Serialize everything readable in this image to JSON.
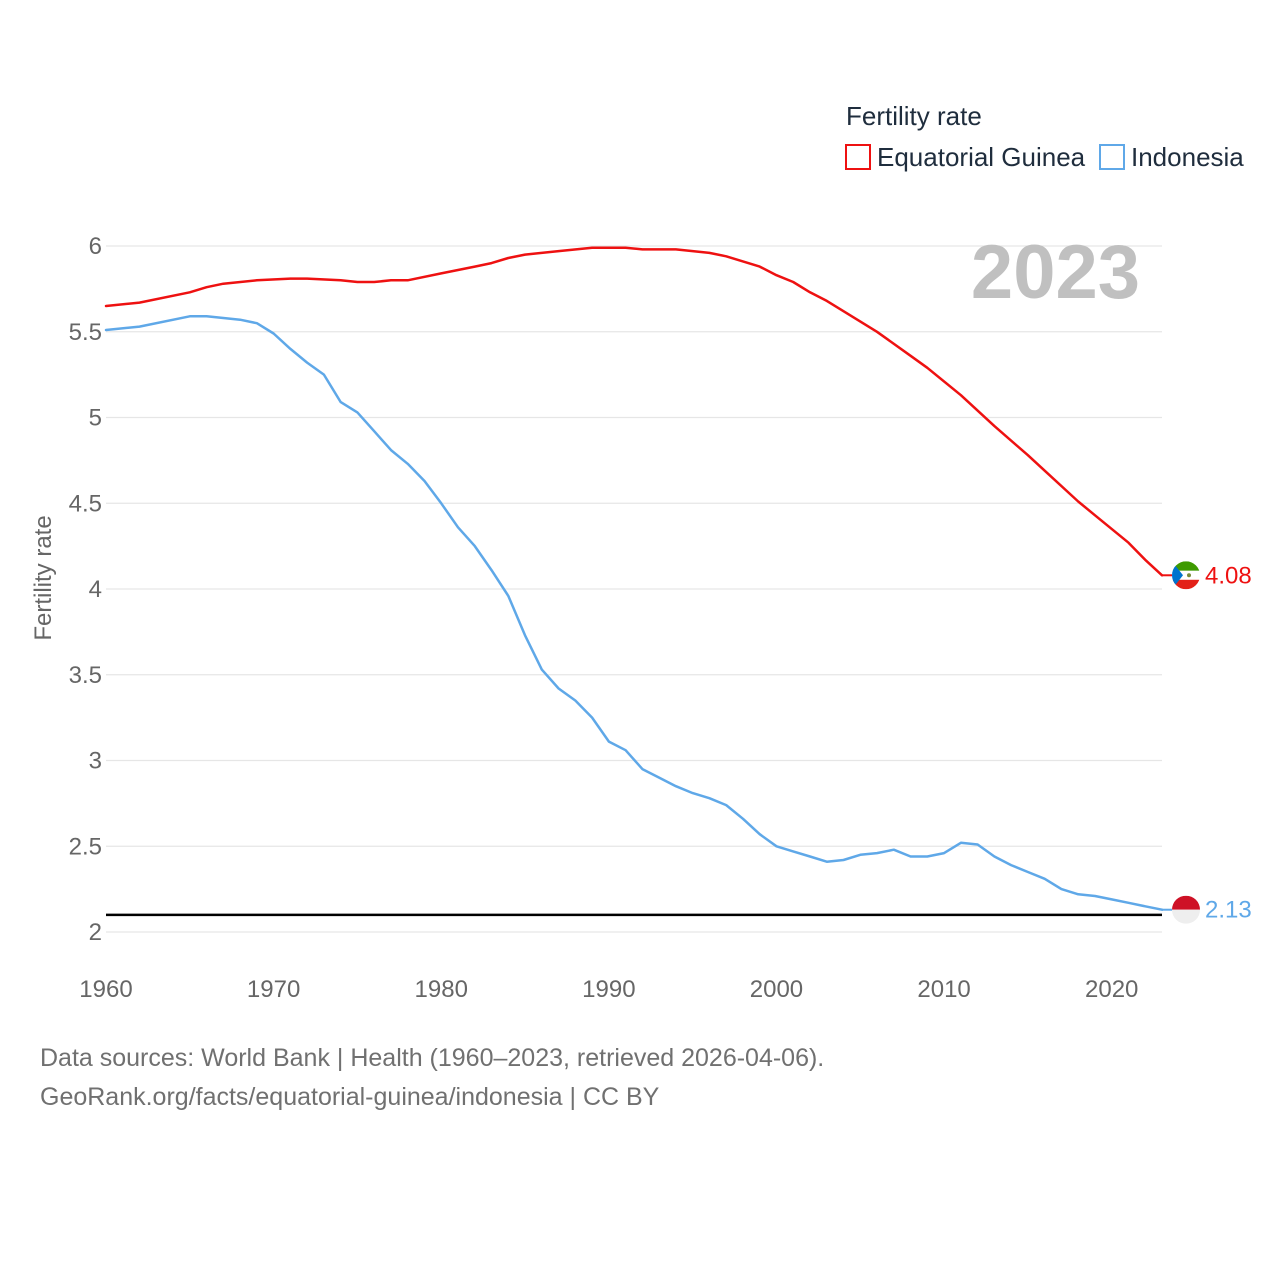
{
  "chart_data": {
    "type": "line",
    "ylabel": "Fertility rate",
    "ylim": [
      2,
      6
    ],
    "xlim": [
      1960,
      2023
    ],
    "yticks": [
      "2",
      "2.5",
      "3",
      "3.5",
      "4",
      "4.5",
      "5",
      "5.5",
      "6"
    ],
    "xticks": [
      "1960",
      "1970",
      "1980",
      "1990",
      "2000",
      "2010",
      "2020"
    ],
    "year_label": "2023",
    "reference_line": 2.1,
    "legend": {
      "title": "Fertility rate",
      "position": "top-right"
    },
    "series": [
      {
        "name": "Equatorial Guinea",
        "color": "#ee1111",
        "end_value": "4.08",
        "flag_icon": "equatorial-guinea-flag-icon",
        "x": [
          1960,
          1962,
          1965,
          1966,
          1967,
          1969,
          1971,
          1972,
          1974,
          1975,
          1976,
          1977,
          1978,
          1980,
          1982,
          1983,
          1984,
          1985,
          1987,
          1989,
          1990,
          1991,
          1992,
          1994,
          1996,
          1997,
          1999,
          2000,
          2001,
          2002,
          2003,
          2004,
          2006,
          2008,
          2009,
          2011,
          2013,
          2015,
          2016,
          2018,
          2019,
          2021,
          2022,
          2023
        ],
        "values": [
          5.65,
          5.67,
          5.73,
          5.76,
          5.78,
          5.8,
          5.81,
          5.81,
          5.8,
          5.79,
          5.79,
          5.8,
          5.8,
          5.84,
          5.88,
          5.9,
          5.93,
          5.95,
          5.97,
          5.99,
          5.99,
          5.99,
          5.98,
          5.98,
          5.96,
          5.94,
          5.88,
          5.83,
          5.79,
          5.73,
          5.68,
          5.62,
          5.5,
          5.36,
          5.29,
          5.13,
          4.95,
          4.78,
          4.69,
          4.51,
          4.43,
          4.27,
          4.17,
          4.08
        ]
      },
      {
        "name": "Indonesia",
        "color": "#5fa8e8",
        "end_value": "2.13",
        "flag_icon": "indonesia-flag-icon",
        "x": [
          1960,
          1962,
          1965,
          1966,
          1968,
          1969,
          1970,
          1971,
          1972,
          1973,
          1974,
          1975,
          1976,
          1977,
          1978,
          1979,
          1980,
          1981,
          1982,
          1983,
          1984,
          1985,
          1986,
          1987,
          1988,
          1989,
          1990,
          1991,
          1992,
          1993,
          1994,
          1995,
          1996,
          1997,
          1998,
          1999,
          2000,
          2001,
          2002,
          2003,
          2004,
          2005,
          2006,
          2007,
          2008,
          2009,
          2010,
          2011,
          2012,
          2013,
          2014,
          2015,
          2016,
          2017,
          2018,
          2019,
          2020,
          2021,
          2022,
          2023
        ],
        "values": [
          5.51,
          5.53,
          5.59,
          5.59,
          5.57,
          5.55,
          5.49,
          5.4,
          5.32,
          5.25,
          5.09,
          5.03,
          4.92,
          4.81,
          4.73,
          4.63,
          4.5,
          4.36,
          4.25,
          4.11,
          3.96,
          3.73,
          3.53,
          3.42,
          3.35,
          3.25,
          3.11,
          3.06,
          2.95,
          2.9,
          2.85,
          2.81,
          2.78,
          2.74,
          2.66,
          2.57,
          2.5,
          2.47,
          2.44,
          2.41,
          2.42,
          2.45,
          2.46,
          2.48,
          2.44,
          2.44,
          2.46,
          2.52,
          2.51,
          2.44,
          2.39,
          2.35,
          2.31,
          2.25,
          2.22,
          2.21,
          2.19,
          2.17,
          2.15,
          2.13
        ]
      }
    ]
  },
  "source": {
    "line1": "Data sources: World Bank | Health (1960–2023, retrieved 2026-04-06).",
    "line2": "GeoRank.org/facts/equatorial-guinea/indonesia | CC BY"
  }
}
